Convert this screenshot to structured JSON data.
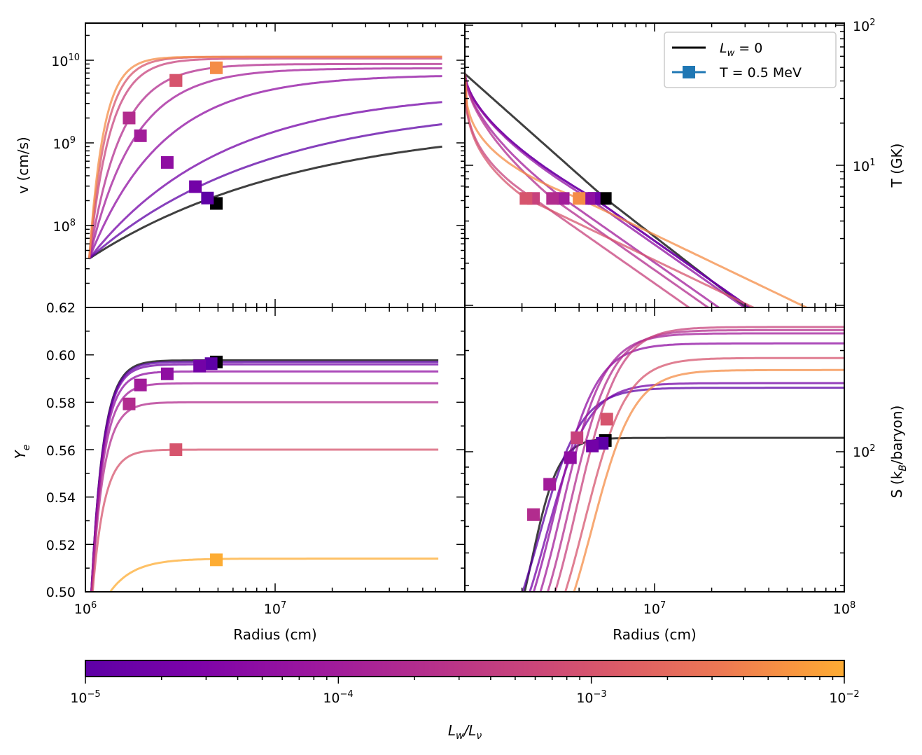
{
  "chart_data": [
    {
      "panel": "top-left",
      "type": "line",
      "xlabel": "",
      "ylabel": "v (cm/s)",
      "xscale": "log",
      "yscale": "log",
      "xlim": [
        1000000,
        70000000
      ],
      "ylim": [
        62000000,
        30000000000
      ],
      "yticks": [
        "10^8",
        "10^9",
        "10^10"
      ],
      "extra_ytick_label": "0.62",
      "series": [
        {
          "lw": 0,
          "v_end": 1850000000.0,
          "marker": [
            4900000.0,
            185000000.0
          ]
        },
        {
          "lw": 1e-05,
          "v_end": 3000000000.0,
          "marker": [
            4400000.0,
            215000000.0
          ]
        },
        {
          "lw": 2e-05,
          "v_end": 4300000000.0,
          "marker": [
            3800000.0,
            295000000.0
          ]
        },
        {
          "lw": 5e-05,
          "v_end": 6700000000.0,
          "marker": [
            2700000.0,
            580000000.0
          ]
        },
        {
          "lw": 0.0001,
          "v_end": 8000000000.0,
          "marker": [
            1950000.0,
            1220000000.0
          ]
        },
        {
          "lw": 0.0002,
          "v_end": 9000000000.0,
          "marker": [
            1700000.0,
            2000000000.0
          ]
        },
        {
          "lw": 0.0005,
          "v_end": 10500000000.0,
          "marker": [
            3000000.0,
            5700000000.0
          ]
        },
        {
          "lw": 0.001,
          "v_end": 11000000000.0,
          "marker": [
            3000000.0,
            5700000000.0
          ]
        },
        {
          "lw": 0.005,
          "v_end": 11000000000.0,
          "marker": [
            4900000.0,
            8100000000.0
          ]
        }
      ]
    },
    {
      "panel": "top-right",
      "type": "line",
      "xlabel": "",
      "ylabel": "T (GK)",
      "xscale": "log",
      "yscale": "log",
      "xlim": [
        1000000,
        100000000
      ],
      "ylim": [
        1.2,
        100
      ],
      "yticks": [
        "10^1",
        "10^2"
      ],
      "marker_temperature_GK": 5.8,
      "marker_x": [
        5500000.0,
        4800000.0,
        4800000.0,
        4500000.0,
        3300000.0,
        2900000.0,
        2300000.0,
        2100000.0,
        4000000.0
      ]
    },
    {
      "panel": "bottom-left",
      "type": "line",
      "xlabel": "Radius (cm)",
      "ylabel": "Ye",
      "xscale": "log",
      "xlim": [
        1000000,
        70000000
      ],
      "ylim": [
        0.5,
        0.62
      ],
      "yticks": [
        "0.50",
        "0.52",
        "0.54",
        "0.56",
        "0.58",
        "0.60",
        "0.62"
      ],
      "xticks": [
        "10^6",
        "10^7"
      ],
      "series": [
        {
          "lw": 0,
          "ye_end": 0.5977,
          "marker": [
            4900000.0,
            0.597
          ]
        },
        {
          "lw": 1e-05,
          "ye_end": 0.597,
          "marker": [
            4600000.0,
            0.5963
          ]
        },
        {
          "lw": 2e-05,
          "ye_end": 0.596,
          "marker": [
            4000000.0,
            0.5953
          ]
        },
        {
          "lw": 5e-05,
          "ye_end": 0.593,
          "marker": [
            2700000.0,
            0.592
          ]
        },
        {
          "lw": 0.0001,
          "ye_end": 0.588,
          "marker": [
            1950000.0,
            0.5873
          ]
        },
        {
          "lw": 0.0002,
          "ye_end": 0.58,
          "marker": [
            1700000.0,
            0.5793
          ]
        },
        {
          "lw": 0.001,
          "ye_end": 0.56,
          "marker": [
            3000000.0,
            0.56
          ]
        },
        {
          "lw": 0.01,
          "ye_end": 0.514,
          "marker": [
            4900000.0,
            0.5135
          ]
        }
      ]
    },
    {
      "panel": "bottom-right",
      "type": "line",
      "xlabel": "Radius (cm)",
      "ylabel": "S (kB/baryon)",
      "xscale": "log",
      "yscale": "log",
      "xlim": [
        1000000,
        100000000
      ],
      "yticks": [
        "10^2"
      ],
      "xticks": [
        "10^7",
        "10^8"
      ],
      "entropy_end": [
        110,
        155,
        160,
        210,
        225,
        230,
        235,
        190,
        175
      ],
      "markers": [
        [
          5500000.0,
          108
        ],
        [
          5300000.0,
          106
        ],
        [
          4700000.0,
          104
        ],
        [
          3600000.0,
          96
        ],
        [
          2800000.0,
          80
        ],
        [
          2300000.0,
          65
        ],
        [
          3900000.0,
          110
        ],
        [
          5600000.0,
          125
        ]
      ]
    }
  ],
  "legend": {
    "entries": [
      {
        "label_main": "L",
        "label_sub": "w",
        "label_tail": " = 0",
        "color": "#000000"
      },
      {
        "label_main": "T = 0.5 MeV",
        "color": "#1f77b4"
      }
    ]
  },
  "colorbar": {
    "label_main": "L",
    "label_sub1": "w",
    "label_mid": "/L",
    "label_sub2": "ν",
    "ticks": [
      "10^-5",
      "10^-4",
      "10^-3",
      "10^-2"
    ],
    "colormap": "plasma",
    "range": [
      1e-05,
      0.01
    ]
  },
  "labels": {
    "tl_yaxis": "v (cm/s)",
    "tr_yaxis": "T (GK)",
    "bl_yaxis_main": "Y",
    "bl_yaxis_sub": "e",
    "br_yaxis_main": "S (k",
    "br_yaxis_sub": "B",
    "br_yaxis_tail": "/baryon)",
    "bl_xaxis": "Radius (cm)",
    "br_xaxis": "Radius (cm)",
    "tl_extra": "0.62",
    "bl_ticks": [
      "0.50",
      "0.52",
      "0.54",
      "0.56",
      "0.58",
      "0.60",
      "0.62"
    ]
  }
}
